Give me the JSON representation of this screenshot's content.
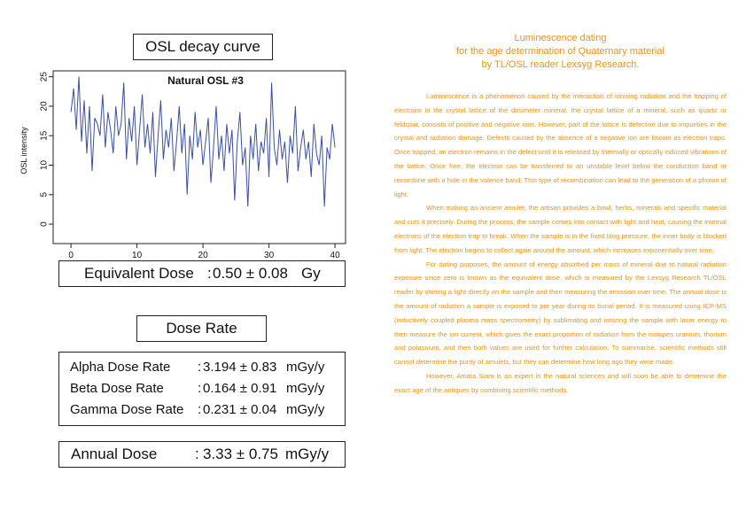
{
  "chart_data": {
    "type": "line",
    "header": "OSL decay curve",
    "title": "Natural OSL #3",
    "y_label": "OSL intensity",
    "x": [
      0,
      0.4,
      0.8,
      1.2,
      1.6,
      2,
      2.4,
      2.8,
      3.2,
      3.6,
      4,
      4.4,
      4.8,
      5.2,
      5.6,
      6,
      6.4,
      6.8,
      7.2,
      7.6,
      8,
      8.4,
      8.8,
      9.2,
      9.6,
      10,
      10.4,
      10.8,
      11.2,
      11.6,
      12,
      12.4,
      12.8,
      13.2,
      13.6,
      14,
      14.4,
      14.8,
      15.2,
      15.6,
      16,
      16.4,
      16.8,
      17.2,
      17.6,
      18,
      18.4,
      18.8,
      19.2,
      19.6,
      20,
      20.4,
      20.8,
      21.2,
      21.6,
      22,
      22.4,
      22.8,
      23.2,
      23.6,
      24,
      24.4,
      24.8,
      25.2,
      25.6,
      26,
      26.4,
      26.8,
      27.2,
      27.6,
      28,
      28.4,
      28.8,
      29.2,
      29.6,
      30,
      30.4,
      30.8,
      31.2,
      31.6,
      32,
      32.4,
      32.8,
      33.2,
      33.6,
      34,
      34.4,
      34.8,
      35.2,
      35.6,
      36,
      36.4,
      36.8,
      37.2,
      37.6,
      38,
      38.4,
      38.8,
      39.2,
      39.6,
      40
    ],
    "series": [
      {
        "color": "#3a4fa3",
        "values": [
          19,
          23,
          16,
          25,
          14,
          21,
          12,
          20,
          9,
          18,
          17,
          15,
          22,
          13,
          19,
          16,
          12,
          20,
          15,
          17,
          24,
          11,
          18,
          14,
          20,
          10,
          16,
          22,
          13,
          17,
          12,
          19,
          8,
          15,
          21,
          11,
          16,
          13,
          18,
          9,
          14,
          20,
          12,
          17,
          5,
          15,
          11,
          19,
          13,
          16,
          10,
          14,
          18,
          7,
          13,
          20,
          11,
          15,
          9,
          17,
          12,
          16,
          4,
          14,
          19,
          10,
          13,
          3,
          15,
          11,
          17,
          9,
          14,
          12,
          18,
          8,
          24,
          13,
          10,
          16,
          11,
          14,
          7,
          15,
          12,
          20,
          9,
          13,
          16,
          11,
          14,
          8,
          17,
          12,
          10,
          15,
          3,
          13,
          11,
          17,
          13
        ]
      }
    ],
    "xlim": [
      -2.7,
      41.6
    ],
    "ylim": [
      -3.3,
      26
    ],
    "xticks": [
      0,
      10,
      20,
      30,
      40
    ],
    "yticks": [
      0,
      5,
      10,
      15,
      20,
      25
    ]
  },
  "equivalent_dose": {
    "label": "Equivalent Dose",
    "value": "0.50 ± 0.08",
    "unit": "Gy"
  },
  "dose_rate": {
    "header": "Dose Rate",
    "rows": [
      {
        "label": "Alpha Dose Rate",
        "value": "3.194 ± 0.83",
        "unit": "mGy/y"
      },
      {
        "label": "Beta Dose Rate",
        "value": "0.164 ± 0.91",
        "unit": "mGy/y"
      },
      {
        "label": "Gamma Dose Rate",
        "value": "0.231 ± 0.04",
        "unit": "mGy/y"
      }
    ]
  },
  "annual_dose": {
    "label": "Annual Dose",
    "value": "3.33 ± 0.75",
    "unit": "mGy/y"
  },
  "article": {
    "title": [
      "Luminescence dating",
      "for the age determination of Quaternary material",
      "by TL/OSL reader Lexsyg Research."
    ],
    "paragraphs": [
      "Luminescence is a phenomenon caused by the interaction of ionising radiation and the trapping of electrons in the crystal lattice of the dosimeter mineral. the crystal lattice of a mineral, such as quartz or feldspar, consists of positive and negative ions. However, part of the lattice is defective due to impurities in the crystal and radiation damage. Defects caused by the absence of a negative ion are known as electron traps. Once trapped, an electron remains in the defect until it is released by thermally or optically induced vibrations of the lattice. Once free, the electron can be transferred to an unstable level below the conduction band or recombine with a hole in the valence band. This type of recombination can lead to the generation of a photon of light.",
      "When making an ancient amulet, the artisan provides a bowl, herbs, minerals and specific material and cuts it precisely. During the process, the sample comes into contact with light and heat, causing the internal electrons of the electron trap to break. When the sample is in the fixed blog pressure, the inner body is blocked from light. The electron begins to collect again around the amount, which increases exponentially over time.",
      "For dating purposes, the amount of energy absorbed per mass of mineral due to natural radiation exposure since zero is known as the equivalent dose, which is measured by the Lexsyg Research TL/OSL reader by shining a light directly on the sample and then measuring the emission over time. The annual dose is the amount of radiation a sample is exposed to per year during its burial period. It is measured using ICP-MS (inductively coupled plasma mass spectrometry) by sublimating and ionizing the sample with laser energy to then measure the ion current, which gives the exact proportion of radiation from the isotopes uranium, thorium and potassium, and then both values are used for further calculation. To summarise, scientific methods still cannot determine the purity of amulets, but they can determine how long ago they were made.",
      "However, Amata Siam is an expert in the natural sciences and will soon be able to determine the exact age of the antiques by combining scientific methods."
    ]
  }
}
